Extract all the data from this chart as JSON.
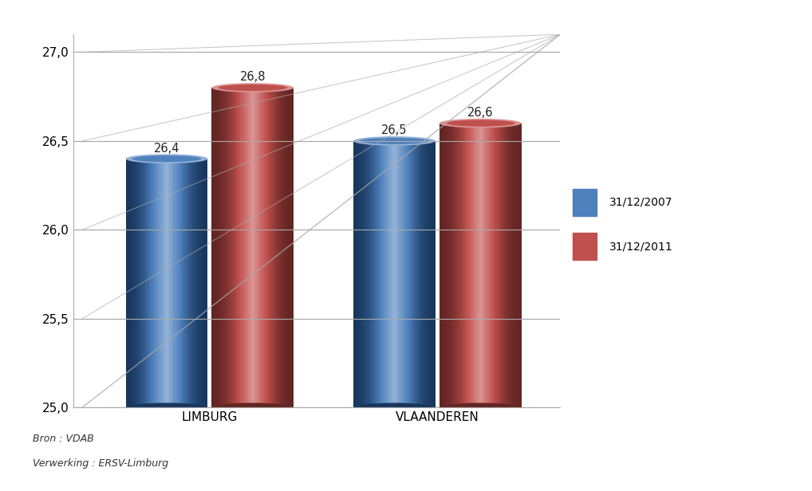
{
  "categories": [
    "LIMBURG",
    "VLAANDEREN"
  ],
  "series": [
    {
      "label": "31/12/2007",
      "values": [
        26.4,
        26.5
      ]
    },
    {
      "label": "31/12/2011",
      "values": [
        26.8,
        26.6
      ]
    }
  ],
  "blue_body": "#4f81bd",
  "blue_light": "#95b3d7",
  "blue_dark": "#17375e",
  "red_body": "#c0504d",
  "red_light": "#da9694",
  "red_dark": "#632523",
  "ylim": [
    25.0,
    27.1
  ],
  "yticks": [
    25.0,
    25.5,
    26.0,
    26.5,
    27.0
  ],
  "yticklabels": [
    "25,0",
    "25,5",
    "26,0",
    "26,5",
    "27,0"
  ],
  "bar_width": 0.18,
  "footnote1": "Bron : VDAB",
  "footnote2": "Verwerking : ERSV-Limburg",
  "background_color": "#ffffff",
  "grid_color": "#aaaaaa",
  "legend_blue": "#4f81bd",
  "legend_red": "#c0504d"
}
